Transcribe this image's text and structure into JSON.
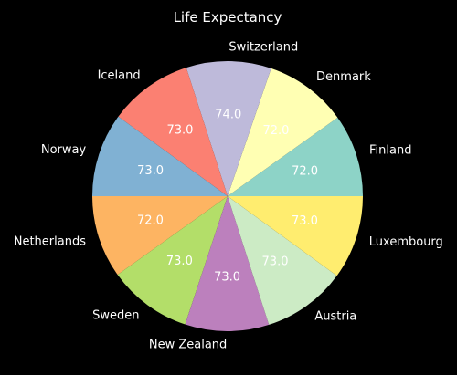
{
  "chart_data": {
    "type": "pie",
    "title": "Life Expectancy",
    "categories": [
      "Finland",
      "Denmark",
      "Switzerland",
      "Iceland",
      "Norway",
      "Netherlands",
      "Sweden",
      "New Zealand",
      "Austria",
      "Luxembourg"
    ],
    "values": [
      72.0,
      72.0,
      74.0,
      73.0,
      73.0,
      72.0,
      73.0,
      73.0,
      73.0,
      73.0
    ],
    "value_labels": [
      "72.0",
      "72.0",
      "74.0",
      "73.0",
      "73.0",
      "72.0",
      "73.0",
      "73.0",
      "73.0",
      "73.0"
    ],
    "colors": [
      "#8dd3c7",
      "#ffffb3",
      "#bebada",
      "#fb8072",
      "#80b1d3",
      "#fdb462",
      "#b3de69",
      "#bc80bd",
      "#ccebc5",
      "#ffed6f"
    ],
    "start_angle_deg": 0,
    "direction": "counterclockwise",
    "legend": "none"
  }
}
